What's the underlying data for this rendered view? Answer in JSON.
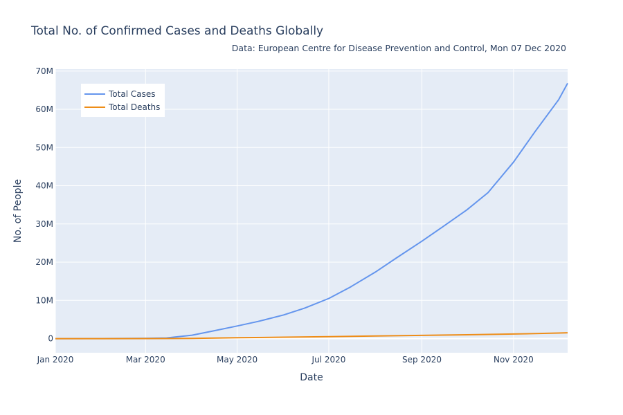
{
  "chart_data": {
    "type": "line",
    "title": "Total No. of Confirmed Cases and Deaths Globally",
    "subtitle": "Data: European Centre for Disease Prevention and Control, Mon 07 Dec 2020",
    "xlabel": "Date",
    "ylabel": "No. of People",
    "xlim": [
      "2020-01-01",
      "2020-12-07"
    ],
    "ylim": [
      -3700000,
      70500000
    ],
    "x_ticks": [
      {
        "date": "2020-01-01",
        "label": "Jan 2020"
      },
      {
        "date": "2020-03-01",
        "label": "Mar 2020"
      },
      {
        "date": "2020-05-01",
        "label": "May 2020"
      },
      {
        "date": "2020-07-01",
        "label": "Jul 2020"
      },
      {
        "date": "2020-09-01",
        "label": "Sep 2020"
      },
      {
        "date": "2020-11-01",
        "label": "Nov 2020"
      }
    ],
    "y_ticks": [
      {
        "value": 0,
        "label": "0"
      },
      {
        "value": 10000000,
        "label": "10M"
      },
      {
        "value": 20000000,
        "label": "20M"
      },
      {
        "value": 30000000,
        "label": "30M"
      },
      {
        "value": 40000000,
        "label": "40M"
      },
      {
        "value": 50000000,
        "label": "50M"
      },
      {
        "value": 60000000,
        "label": "60M"
      },
      {
        "value": 70000000,
        "label": "70M"
      }
    ],
    "grid": true,
    "legend_position": "top-left",
    "series": [
      {
        "name": "Total Cases",
        "color": "#6495ed",
        "points": [
          [
            "2020-01-01",
            0
          ],
          [
            "2020-02-01",
            12000
          ],
          [
            "2020-03-01",
            88000
          ],
          [
            "2020-03-15",
            170000
          ],
          [
            "2020-04-01",
            900000
          ],
          [
            "2020-04-15",
            2000000
          ],
          [
            "2020-05-01",
            3300000
          ],
          [
            "2020-05-15",
            4500000
          ],
          [
            "2020-06-01",
            6200000
          ],
          [
            "2020-06-15",
            8000000
          ],
          [
            "2020-07-01",
            10500000
          ],
          [
            "2020-07-15",
            13400000
          ],
          [
            "2020-08-01",
            17400000
          ],
          [
            "2020-08-15",
            21100000
          ],
          [
            "2020-09-01",
            25500000
          ],
          [
            "2020-09-15",
            29300000
          ],
          [
            "2020-10-01",
            33700000
          ],
          [
            "2020-10-15",
            38200000
          ],
          [
            "2020-11-01",
            46200000
          ],
          [
            "2020-11-15",
            54000000
          ],
          [
            "2020-12-01",
            62500000
          ],
          [
            "2020-12-07",
            66800000
          ]
        ]
      },
      {
        "name": "Total Deaths",
        "color": "#ee8d18",
        "points": [
          [
            "2020-01-01",
            0
          ],
          [
            "2020-02-01",
            250
          ],
          [
            "2020-03-01",
            3000
          ],
          [
            "2020-04-01",
            47000
          ],
          [
            "2020-05-01",
            235000
          ],
          [
            "2020-06-01",
            372000
          ],
          [
            "2020-07-01",
            512000
          ],
          [
            "2020-08-01",
            678000
          ],
          [
            "2020-09-01",
            850000
          ],
          [
            "2020-10-01",
            1010000
          ],
          [
            "2020-11-01",
            1200000
          ],
          [
            "2020-12-01",
            1460000
          ],
          [
            "2020-12-07",
            1530000
          ]
        ]
      }
    ]
  }
}
